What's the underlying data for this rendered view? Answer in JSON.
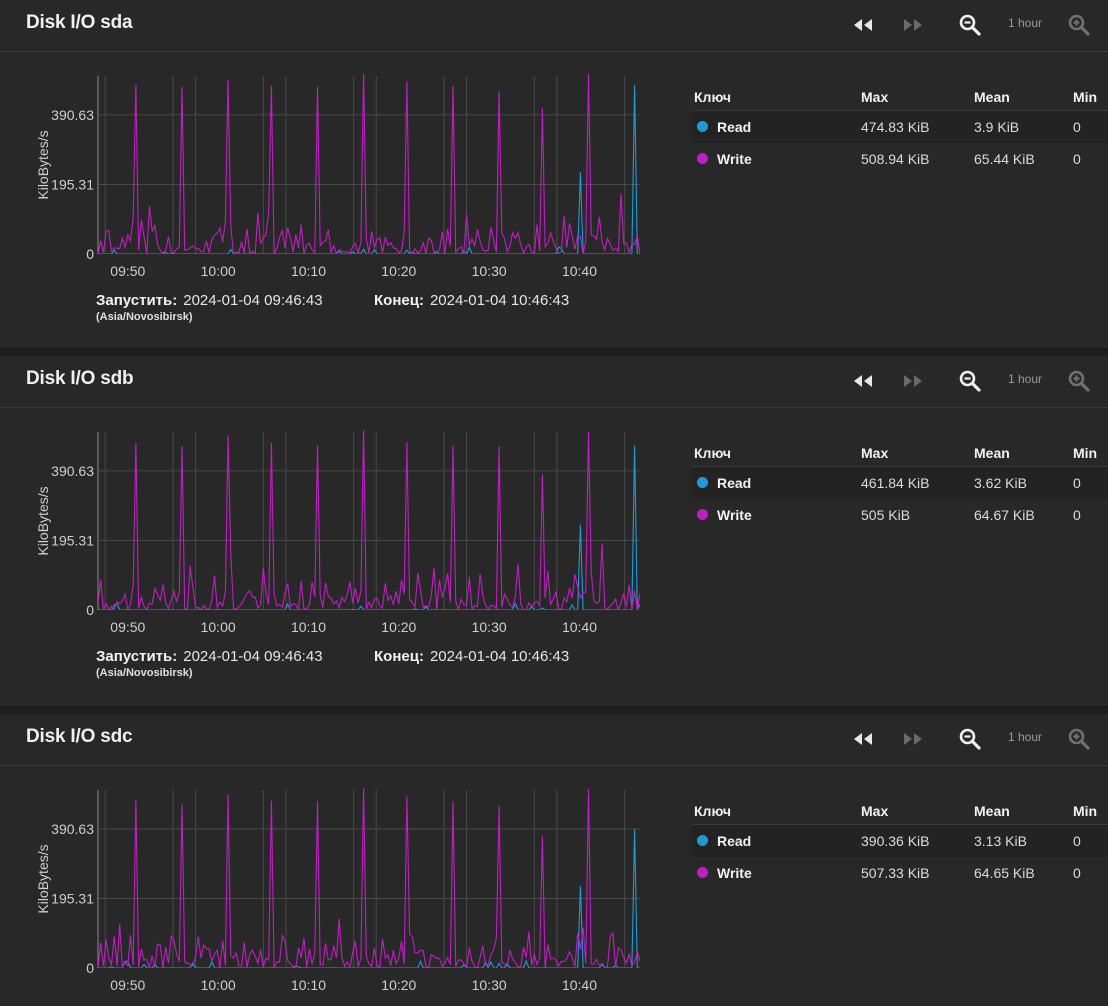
{
  "colors": {
    "read": "#1e9bd7",
    "write": "#c01ec4",
    "grid": "#4a4a4a",
    "axis": "#8a8a8a"
  },
  "icons": {
    "back": "rewind-icon",
    "forward": "fast-forward-icon",
    "zoom_out": "zoom-out-icon",
    "zoom_in": "zoom-in-icon"
  },
  "panels": [
    {
      "title": "Disk I/O sda",
      "range_label": "1 hour",
      "start_label": "Запустить:",
      "start_value": "2024-01-04 09:46:43",
      "timezone": "(Asia/Novosibirsk)",
      "end_label": "Конец:",
      "end_value": "2024-01-04 10:46:43",
      "legend": {
        "headers": [
          "Ключ",
          "Max",
          "Mean",
          "Min"
        ],
        "rows": [
          {
            "name": "Read",
            "max": "474.83 KiB",
            "mean": "3.9 KiB",
            "min": "0"
          },
          {
            "name": "Write",
            "max": "508.94 KiB",
            "mean": "65.44 KiB",
            "min": "0"
          }
        ]
      },
      "chart_data": {
        "type": "line",
        "ylabel": "KiloBytes/s",
        "y_ticks": [
          "0",
          "195.31",
          "390.63"
        ],
        "x_ticks": [
          "09:50",
          "10:00",
          "10:10",
          "10:20",
          "10:30",
          "10:40"
        ],
        "ylim": [
          0,
          500
        ],
        "series": [
          {
            "name": "Read",
            "peaks": [
              {
                "t": "10:40",
                "value": 230
              },
              {
                "t": "10:46",
                "value": 474.83
              }
            ]
          },
          {
            "name": "Write",
            "peaks": [
              {
                "t": "09:51",
                "value": 476
              },
              {
                "t": "09:56",
                "value": 470
              },
              {
                "t": "10:01",
                "value": 490
              },
              {
                "t": "10:06",
                "value": 472
              },
              {
                "t": "10:11",
                "value": 470
              },
              {
                "t": "10:16",
                "value": 508.94
              },
              {
                "t": "10:21",
                "value": 485
              },
              {
                "t": "10:26",
                "value": 472
              },
              {
                "t": "10:31",
                "value": 458
              },
              {
                "t": "10:36",
                "value": 410
              },
              {
                "t": "10:41",
                "value": 508
              }
            ],
            "baseline_mean": 65.44
          }
        ]
      }
    },
    {
      "title": "Disk I/O sdb",
      "range_label": "1 hour",
      "start_label": "Запустить:",
      "start_value": "2024-01-04 09:46:43",
      "timezone": "(Asia/Novosibirsk)",
      "end_label": "Конец:",
      "end_value": "2024-01-04 10:46:43",
      "legend": {
        "headers": [
          "Ключ",
          "Max",
          "Mean",
          "Min"
        ],
        "rows": [
          {
            "name": "Read",
            "max": "461.84 KiB",
            "mean": "3.62 KiB",
            "min": "0"
          },
          {
            "name": "Write",
            "max": "505 KiB",
            "mean": "64.67 KiB",
            "min": "0"
          }
        ]
      },
      "chart_data": {
        "type": "line",
        "ylabel": "KiloBytes/s",
        "y_ticks": [
          "0",
          "195.31",
          "390.63"
        ],
        "x_ticks": [
          "09:50",
          "10:00",
          "10:10",
          "10:20",
          "10:30",
          "10:40"
        ],
        "ylim": [
          0,
          500
        ],
        "series": [
          {
            "name": "Read",
            "peaks": [
              {
                "t": "10:40",
                "value": 240
              },
              {
                "t": "10:46",
                "value": 461.84
              }
            ]
          },
          {
            "name": "Write",
            "peaks": [
              {
                "t": "09:51",
                "value": 470
              },
              {
                "t": "09:56",
                "value": 460
              },
              {
                "t": "10:01",
                "value": 490
              },
              {
                "t": "10:06",
                "value": 470
              },
              {
                "t": "10:11",
                "value": 462
              },
              {
                "t": "10:16",
                "value": 505
              },
              {
                "t": "10:21",
                "value": 472
              },
              {
                "t": "10:26",
                "value": 462
              },
              {
                "t": "10:31",
                "value": 460
              },
              {
                "t": "10:36",
                "value": 380
              },
              {
                "t": "10:41",
                "value": 500
              }
            ],
            "baseline_mean": 64.67
          }
        ]
      }
    },
    {
      "title": "Disk I/O sdc",
      "range_label": "1 hour",
      "start_label": "",
      "start_value": "",
      "timezone": "",
      "end_label": "",
      "end_value": "",
      "legend": {
        "headers": [
          "Ключ",
          "Max",
          "Mean",
          "Min"
        ],
        "rows": [
          {
            "name": "Read",
            "max": "390.36 KiB",
            "mean": "3.13 KiB",
            "min": "0"
          },
          {
            "name": "Write",
            "max": "507.33 KiB",
            "mean": "64.65 KiB",
            "min": "0"
          }
        ]
      },
      "chart_data": {
        "type": "line",
        "ylabel": "KiloBytes/s",
        "y_ticks": [
          "0",
          "195.31",
          "390.63"
        ],
        "x_ticks": [
          "09:50",
          "10:00",
          "10:10",
          "10:20",
          "10:30",
          "10:40"
        ],
        "ylim": [
          0,
          500
        ],
        "series": [
          {
            "name": "Read",
            "peaks": [
              {
                "t": "10:40",
                "value": 230
              },
              {
                "t": "10:46",
                "value": 390.36
              }
            ]
          },
          {
            "name": "Write",
            "peaks": [
              {
                "t": "09:51",
                "value": 472
              },
              {
                "t": "09:56",
                "value": 460
              },
              {
                "t": "10:01",
                "value": 488
              },
              {
                "t": "10:06",
                "value": 470
              },
              {
                "t": "10:11",
                "value": 468
              },
              {
                "t": "10:16",
                "value": 507.33
              },
              {
                "t": "10:21",
                "value": 482
              },
              {
                "t": "10:26",
                "value": 468
              },
              {
                "t": "10:31",
                "value": 455
              },
              {
                "t": "10:36",
                "value": 370
              },
              {
                "t": "10:41",
                "value": 503
              }
            ],
            "baseline_mean": 64.65
          }
        ]
      }
    }
  ]
}
